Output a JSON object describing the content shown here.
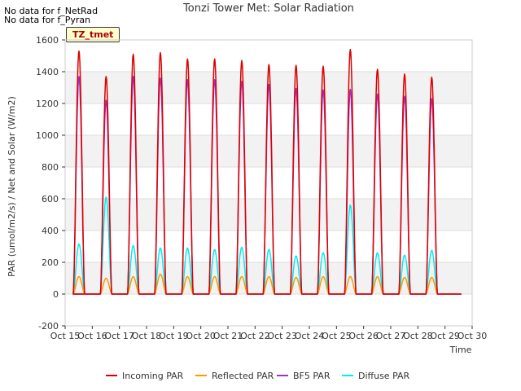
{
  "chart_data": {
    "type": "line",
    "title": "Tonzi Tower Met: Solar Radiation",
    "xlabel": "Time",
    "ylabel": "PAR (umol/m2/s) / Net and Solar (W/m2)",
    "notes": [
      "No data for f_NetRad",
      "No data for f_Pyran"
    ],
    "badge": "TZ_tmet",
    "xlim": [
      15,
      30
    ],
    "ylim": [
      -200,
      1600
    ],
    "x_ticks": [
      15,
      16,
      17,
      18,
      19,
      20,
      21,
      22,
      23,
      24,
      25,
      26,
      27,
      28,
      29,
      30
    ],
    "x_tick_labels": [
      "Oct 15",
      "Oct 16",
      "Oct 17",
      "Oct 18",
      "Oct 19",
      "Oct 20",
      "Oct 21",
      "Oct 22",
      "Oct 23",
      "Oct 24",
      "Oct 25",
      "Oct 26",
      "Oct 27",
      "Oct 28",
      "Oct 29",
      "Oct 30"
    ],
    "y_ticks": [
      -200,
      0,
      200,
      400,
      600,
      800,
      1000,
      1200,
      1400,
      1600
    ],
    "day_starts": [
      15.3,
      16.3,
      17.3,
      18.3,
      19.3,
      20.3,
      21.3,
      22.3,
      23.3,
      24.3,
      25.3,
      26.3,
      27.3,
      28.3
    ],
    "series": [
      {
        "name": "Incoming PAR",
        "color": "#dd0000",
        "daily_peaks": [
          1530,
          1370,
          1510,
          1520,
          1480,
          1480,
          1470,
          1445,
          1440,
          1435,
          1540,
          1415,
          1385,
          1365
        ]
      },
      {
        "name": "Reflected PAR",
        "color": "#ff9900",
        "daily_peaks": [
          110,
          100,
          110,
          125,
          110,
          110,
          110,
          110,
          105,
          110,
          110,
          110,
          105,
          105
        ]
      },
      {
        "name": "BF5 PAR",
        "color": "#9933cc",
        "daily_peaks": [
          1370,
          1220,
          1370,
          1360,
          1350,
          1350,
          1340,
          1320,
          1295,
          1285,
          1290,
          1260,
          1245,
          1230
        ]
      },
      {
        "name": "Diffuse PAR",
        "color": "#00eeee",
        "daily_peaks": [
          315,
          610,
          305,
          290,
          290,
          280,
          295,
          280,
          240,
          260,
          560,
          260,
          245,
          275
        ]
      }
    ]
  }
}
